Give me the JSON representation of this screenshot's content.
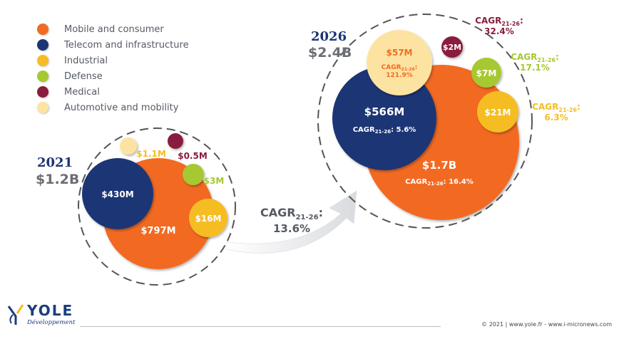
{
  "chart_data": {
    "type": "bubble",
    "legend_position": "top-left",
    "categories": [
      {
        "name": "Mobile and consumer",
        "color": "#f26b22"
      },
      {
        "name": "Telecom and infrastructure",
        "color": "#1c3475"
      },
      {
        "name": "Industrial",
        "color": "#f5bd22"
      },
      {
        "name": "Defense",
        "color": "#a6c832"
      },
      {
        "name": "Medical",
        "color": "#8a1c3c"
      },
      {
        "name": "Automotive and mobility",
        "color": "#fde3a2"
      }
    ],
    "years": [
      {
        "year": "2021",
        "total": "$1.2B",
        "segments": [
          {
            "category": "Mobile and consumer",
            "label": "$797M"
          },
          {
            "category": "Telecom and infrastructure",
            "label": "$430M"
          },
          {
            "category": "Industrial",
            "label": "$16M"
          },
          {
            "category": "Defense",
            "label": "$3M"
          },
          {
            "category": "Medical",
            "label": "$0.5M"
          },
          {
            "category": "Automotive and mobility",
            "label": "$1.1M"
          }
        ]
      },
      {
        "year": "2026",
        "total": "$2.4B",
        "segments": [
          {
            "category": "Mobile and consumer",
            "label": "$1.7B",
            "cagr": "16.4%"
          },
          {
            "category": "Telecom and infrastructure",
            "label": "$566M",
            "cagr": "5.6%"
          },
          {
            "category": "Automotive and mobility",
            "label": "$57M",
            "cagr": "121.9%"
          },
          {
            "category": "Medical",
            "label": "$2M",
            "cagr": "32.4%"
          },
          {
            "category": "Defense",
            "label": "$7M",
            "cagr": "17.1%"
          },
          {
            "category": "Industrial",
            "label": "$21M",
            "cagr": "6.3%"
          }
        ]
      }
    ],
    "overall_cagr": {
      "label": "CAGR",
      "period": "21-26",
      "value": "13.6%"
    }
  },
  "footer": {
    "brand_name": "YOLE",
    "brand_sub": "Développement",
    "copyright": "© 2021 | www.yole.fr - www.i-micronews.com"
  }
}
